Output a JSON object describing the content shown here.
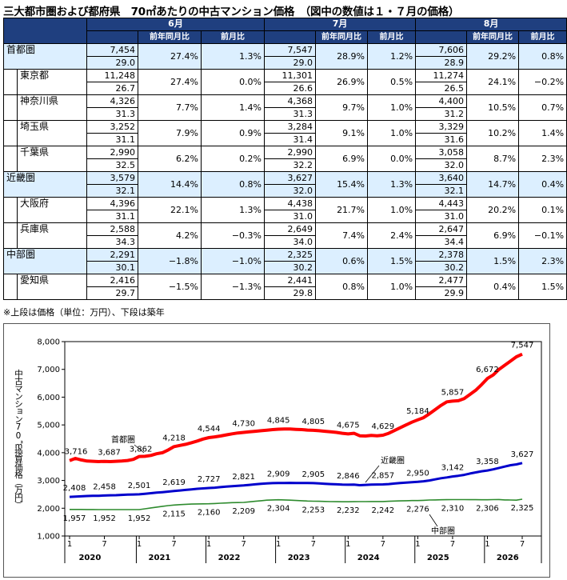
{
  "title": "三大都市圏および都府県　70㎡あたりの中古マンション価格　（図中の数値は１・７月の価格）",
  "table": {
    "months": [
      "6月",
      "7月",
      "8月"
    ],
    "sub_headers": [
      "前年同月比",
      "前月比"
    ],
    "rows": [
      {
        "name": "首都圏",
        "region": true,
        "cols": [
          [
            "7,454",
            "29.0",
            "27.4%",
            "1.3%"
          ],
          [
            "7,547",
            "29.0",
            "28.9%",
            "1.2%"
          ],
          [
            "7,606",
            "28.9",
            "29.2%",
            "0.8%"
          ]
        ]
      },
      {
        "name": "東京都",
        "region": false,
        "cols": [
          [
            "11,248",
            "26.7",
            "27.4%",
            "0.0%"
          ],
          [
            "11,301",
            "26.6",
            "26.9%",
            "0.5%"
          ],
          [
            "11,274",
            "26.5",
            "24.1%",
            "−0.2%"
          ]
        ]
      },
      {
        "name": "神奈川県",
        "region": false,
        "cols": [
          [
            "4,326",
            "31.3",
            "7.7%",
            "1.4%"
          ],
          [
            "4,368",
            "31.3",
            "9.7%",
            "1.0%"
          ],
          [
            "4,400",
            "31.2",
            "10.5%",
            "0.7%"
          ]
        ]
      },
      {
        "name": "埼玉県",
        "region": false,
        "cols": [
          [
            "3,252",
            "31.1",
            "7.9%",
            "0.9%"
          ],
          [
            "3,284",
            "31.4",
            "9.1%",
            "1.0%"
          ],
          [
            "3,329",
            "31.6",
            "10.2%",
            "1.4%"
          ]
        ]
      },
      {
        "name": "千葉県",
        "region": false,
        "cols": [
          [
            "2,990",
            "32.5",
            "6.2%",
            "0.2%"
          ],
          [
            "2,990",
            "32.2",
            "6.9%",
            "0.0%"
          ],
          [
            "3,058",
            "32.0",
            "8.7%",
            "2.3%"
          ]
        ]
      },
      {
        "name": "近畿圏",
        "region": true,
        "cols": [
          [
            "3,579",
            "32.1",
            "14.4%",
            "0.8%"
          ],
          [
            "3,627",
            "32.0",
            "15.4%",
            "1.3%"
          ],
          [
            "3,640",
            "32.1",
            "14.7%",
            "0.4%"
          ]
        ]
      },
      {
        "name": "大阪府",
        "region": false,
        "cols": [
          [
            "4,396",
            "31.1",
            "22.1%",
            "1.3%"
          ],
          [
            "4,438",
            "31.0",
            "21.7%",
            "1.0%"
          ],
          [
            "4,443",
            "31.0",
            "20.2%",
            "0.1%"
          ]
        ]
      },
      {
        "name": "兵庫県",
        "region": false,
        "cols": [
          [
            "2,588",
            "34.3",
            "4.2%",
            "−0.3%"
          ],
          [
            "2,649",
            "34.0",
            "7.4%",
            "2.4%"
          ],
          [
            "2,647",
            "34.4",
            "6.9%",
            "−0.1%"
          ]
        ]
      },
      {
        "name": "中部圏",
        "region": true,
        "cols": [
          [
            "2,291",
            "30.1",
            "−1.8%",
            "−1.0%"
          ],
          [
            "2,325",
            "30.2",
            "0.6%",
            "1.5%"
          ],
          [
            "2,378",
            "30.2",
            "1.5%",
            "2.3%"
          ]
        ]
      },
      {
        "name": "愛知県",
        "region": false,
        "cols": [
          [
            "2,416",
            "29.7",
            "−1.5%",
            "−1.3%"
          ],
          [
            "2,441",
            "29.8",
            "0.8%",
            "1.0%"
          ],
          [
            "2,477",
            "29.9",
            "0.4%",
            "1.5%"
          ]
        ]
      }
    ]
  },
  "note": "※上段は価格（単位：万円）、下段は築年",
  "chart_data": {
    "type": "line",
    "ylabel": "中古マンション70㎡換算価格（万円）",
    "ylim": [
      1000,
      8000
    ],
    "yticks": [
      "1,000",
      "2,000",
      "3,000",
      "4,000",
      "5,000",
      "6,000",
      "7,000",
      "8,000"
    ],
    "x_month_labels": [
      "1",
      "7",
      "1",
      "7",
      "1",
      "7",
      "1",
      "7",
      "1",
      "7",
      "1",
      "7",
      "1",
      "7"
    ],
    "x_year_labels": [
      "2020",
      "2021",
      "2022",
      "2023",
      "2024",
      "2025",
      "2026"
    ],
    "x_start": "2020-01",
    "x_end": "2026-07",
    "series": [
      {
        "name": "首都圏",
        "color": "#ff0000",
        "values": [
          3716,
          3795,
          3740,
          3700,
          3690,
          3680,
          3687,
          3680,
          3690,
          3700,
          3720,
          3760,
          3862,
          3870,
          3900,
          3960,
          4000,
          4100,
          4218,
          4260,
          4300,
          4360,
          4420,
          4490,
          4544,
          4570,
          4600,
          4640,
          4680,
          4710,
          4730,
          4750,
          4770,
          4790,
          4810,
          4830,
          4845,
          4850,
          4850,
          4840,
          4830,
          4815,
          4805,
          4790,
          4770,
          4750,
          4730,
          4700,
          4675,
          4700,
          4610,
          4600,
          4620,
          4610,
          4629,
          4700,
          4800,
          4900,
          5000,
          5100,
          5184,
          5260,
          5400,
          5550,
          5700,
          5830,
          5857,
          5870,
          5950,
          6100,
          6250,
          6450,
          6672,
          6800,
          7000,
          7150,
          7300,
          7454,
          7547
        ],
        "point_labels": [
          {
            "label": "3,716",
            "value": 3716,
            "date": "2020-01"
          },
          {
            "label": "3,687",
            "value": 3687,
            "date": "2020-07"
          },
          {
            "label": "3,862",
            "value": 3862,
            "date": "2021-01"
          },
          {
            "label": "4,218",
            "value": 4218,
            "date": "2021-07"
          },
          {
            "label": "4,544",
            "value": 4544,
            "date": "2022-01"
          },
          {
            "label": "4,730",
            "value": 4730,
            "date": "2022-07"
          },
          {
            "label": "4,845",
            "value": 4845,
            "date": "2023-01"
          },
          {
            "label": "4,805",
            "value": 4805,
            "date": "2023-07"
          },
          {
            "label": "4,675",
            "value": 4675,
            "date": "2024-01"
          },
          {
            "label": "4,629",
            "value": 4629,
            "date": "2024-07"
          },
          {
            "label": "5,184",
            "value": 5184,
            "date": "2025-01"
          },
          {
            "label": "5,857",
            "value": 5857,
            "date": "2025-07"
          },
          {
            "label": "6,672",
            "value": 6672,
            "date": "2026-01"
          },
          {
            "label": "7,547",
            "value": 7547,
            "date": "2026-07"
          }
        ]
      },
      {
        "name": "近畿圏",
        "color": "#0000cc",
        "values": [
          2408,
          2420,
          2430,
          2440,
          2445,
          2450,
          2458,
          2465,
          2470,
          2480,
          2490,
          2495,
          2501,
          2520,
          2540,
          2560,
          2580,
          2600,
          2619,
          2640,
          2660,
          2680,
          2700,
          2715,
          2727,
          2740,
          2760,
          2780,
          2795,
          2810,
          2821,
          2840,
          2860,
          2880,
          2895,
          2905,
          2909,
          2910,
          2912,
          2910,
          2908,
          2906,
          2905,
          2895,
          2880,
          2870,
          2860,
          2850,
          2846,
          2850,
          2830,
          2840,
          2850,
          2855,
          2857,
          2870,
          2890,
          2910,
          2925,
          2940,
          2950,
          2970,
          3000,
          3040,
          3080,
          3110,
          3142,
          3170,
          3200,
          3250,
          3290,
          3330,
          3358,
          3400,
          3450,
          3500,
          3550,
          3579,
          3627
        ]
      },
      {
        "name": "中部圏",
        "color": "#2e8b2e",
        "values": [
          1957,
          1955,
          1955,
          1954,
          1953,
          1952,
          1952,
          1952,
          1952,
          1952,
          1952,
          1952,
          1952,
          1980,
          2010,
          2040,
          2070,
          2095,
          2115,
          2130,
          2140,
          2150,
          2155,
          2158,
          2160,
          2170,
          2180,
          2190,
          2200,
          2205,
          2209,
          2230,
          2250,
          2270,
          2290,
          2300,
          2304,
          2300,
          2290,
          2280,
          2270,
          2260,
          2253,
          2250,
          2245,
          2240,
          2235,
          2233,
          2232,
          2235,
          2238,
          2240,
          2241,
          2242,
          2242,
          2250,
          2260,
          2265,
          2270,
          2275,
          2276,
          2285,
          2295,
          2300,
          2305,
          2308,
          2310,
          2312,
          2310,
          2308,
          2307,
          2306,
          2306,
          2310,
          2315,
          2300,
          2295,
          2291,
          2325
        ]
      }
    ],
    "kinki_labels": [
      {
        "label": "2,408",
        "value": 2408,
        "date": "2020-01"
      },
      {
        "label": "2,458",
        "value": 2458,
        "date": "2020-07"
      },
      {
        "label": "2,501",
        "value": 2501,
        "date": "2021-01"
      },
      {
        "label": "2,619",
        "value": 2619,
        "date": "2021-07"
      },
      {
        "label": "2,727",
        "value": 2727,
        "date": "2022-01"
      },
      {
        "label": "2,821",
        "value": 2821,
        "date": "2022-07"
      },
      {
        "label": "2,909",
        "value": 2909,
        "date": "2023-01"
      },
      {
        "label": "2,905",
        "value": 2905,
        "date": "2023-07"
      },
      {
        "label": "2,846",
        "value": 2846,
        "date": "2024-01"
      },
      {
        "label": "2,857",
        "value": 2857,
        "date": "2024-07"
      },
      {
        "label": "2,950",
        "value": 2950,
        "date": "2025-01"
      },
      {
        "label": "3,142",
        "value": 3142,
        "date": "2025-07"
      },
      {
        "label": "3,358",
        "value": 3358,
        "date": "2026-01"
      },
      {
        "label": "3,627",
        "value": 3627,
        "date": "2026-07"
      }
    ],
    "chubu_labels": [
      {
        "label": "1,957",
        "value": 1957,
        "date": "2020-01"
      },
      {
        "label": "1,952",
        "value": 1952,
        "date": "2020-07"
      },
      {
        "label": "1,952",
        "value": 1952,
        "date": "2021-01"
      },
      {
        "label": "2,115",
        "value": 2115,
        "date": "2021-07"
      },
      {
        "label": "2,160",
        "value": 2160,
        "date": "2022-01"
      },
      {
        "label": "2,209",
        "value": 2209,
        "date": "2022-07"
      },
      {
        "label": "2,304",
        "value": 2304,
        "date": "2023-01"
      },
      {
        "label": "2,253",
        "value": 2253,
        "date": "2023-07"
      },
      {
        "label": "2,232",
        "value": 2232,
        "date": "2024-01"
      },
      {
        "label": "2,242",
        "value": 2242,
        "date": "2024-07"
      },
      {
        "label": "2,276",
        "value": 2276,
        "date": "2025-01"
      },
      {
        "label": "2,310",
        "value": 2310,
        "date": "2025-07"
      },
      {
        "label": "2,306",
        "value": 2306,
        "date": "2026-01"
      },
      {
        "label": "2,325",
        "value": 2325,
        "date": "2026-07"
      }
    ],
    "series_labels": [
      "首都圏",
      "近畿圏",
      "中部圏"
    ]
  }
}
